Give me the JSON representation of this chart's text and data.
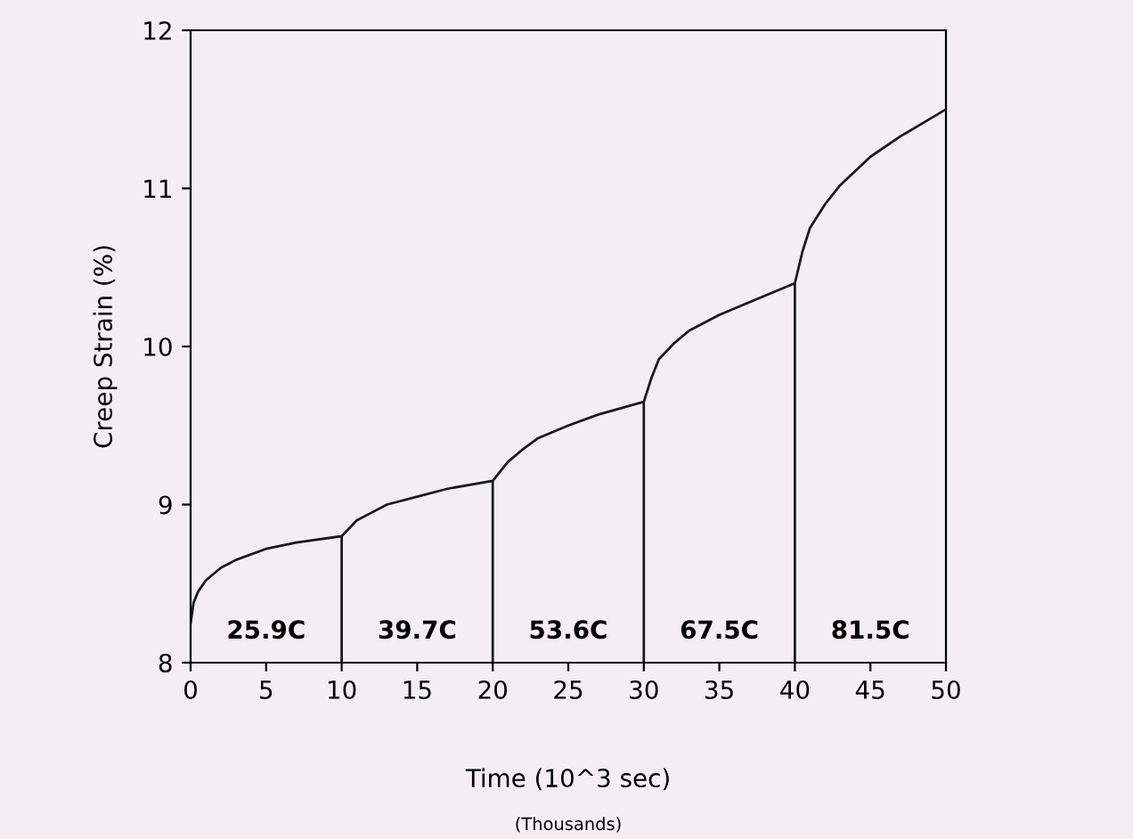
{
  "chart_data": {
    "type": "line",
    "xlabel": "Time (10^3 sec)",
    "ylabel": "Creep Strain (%)",
    "xlim": [
      0,
      50
    ],
    "xticks": [
      0,
      5,
      10,
      15,
      20,
      25,
      30,
      35,
      40,
      45,
      50
    ],
    "ylim": [
      8,
      12
    ],
    "yticks": [
      8,
      9,
      10,
      11,
      12
    ],
    "grid": false,
    "legend": false,
    "marker": "none",
    "line_style": "solid",
    "series": [
      {
        "color": "#1a1a1a",
        "x": [
          0,
          0.2,
          0.5,
          1,
          2,
          3,
          5,
          7,
          10,
          10,
          10,
          11,
          12,
          13,
          15,
          17,
          20,
          20,
          20,
          21,
          22,
          23,
          25,
          27,
          30,
          30,
          30,
          30.5,
          31,
          32,
          33,
          35,
          37,
          40,
          40,
          40,
          40.5,
          41,
          42,
          43,
          45,
          47,
          50
        ],
        "values": [
          8.25,
          8.38,
          8.45,
          8.52,
          8.6,
          8.65,
          8.72,
          8.76,
          8.8,
          8,
          8.8,
          8.9,
          8.95,
          9,
          9.05,
          9.1,
          9.15,
          8,
          9.15,
          9.27,
          9.35,
          9.42,
          9.5,
          9.57,
          9.65,
          8,
          9.65,
          9.8,
          9.92,
          10.02,
          10.1,
          10.2,
          10.28,
          10.4,
          8,
          10.4,
          10.6,
          10.75,
          10.9,
          11.02,
          11.2,
          11.33,
          11.5
        ]
      }
    ],
    "annotations": [
      "25.9C",
      "39.7C",
      "53.6C",
      "67.5C",
      "81.5C",
      "(Thousands)"
    ]
  }
}
